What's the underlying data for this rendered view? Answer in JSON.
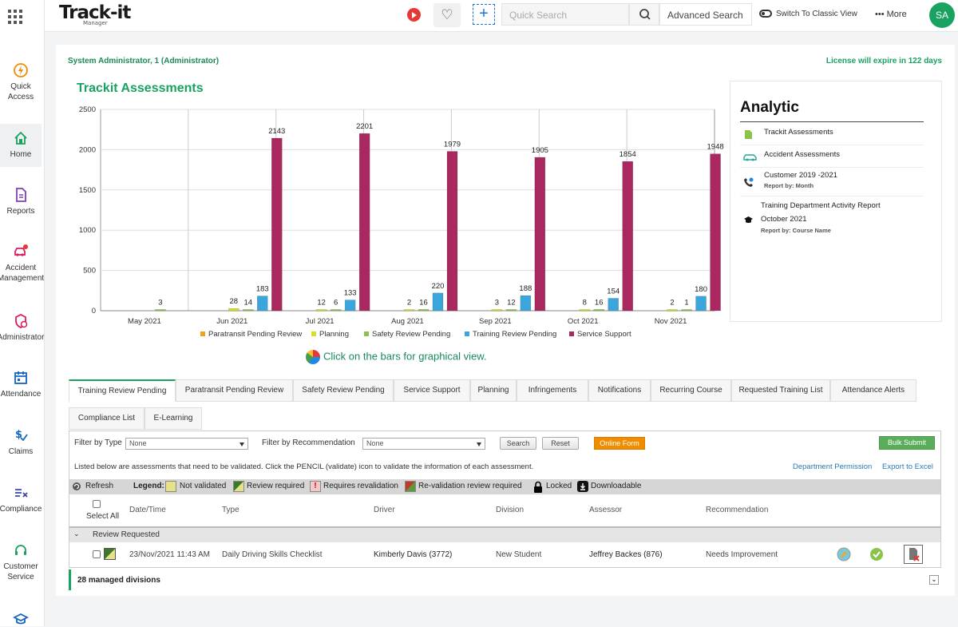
{
  "sidebar": {
    "items": [
      {
        "label": "Quick Access",
        "icon": "bolt-icon"
      },
      {
        "label": "Home",
        "icon": "home-icon"
      },
      {
        "label": "Reports",
        "icon": "document-icon"
      },
      {
        "label": "Accident Management",
        "icon": "car-crash-icon"
      },
      {
        "label": "Administrator",
        "icon": "admin-shield-icon"
      },
      {
        "label": "Attendance",
        "icon": "calendar-icon"
      },
      {
        "label": "Claims",
        "icon": "dollar-check-icon"
      },
      {
        "label": "Compliance",
        "icon": "compliance-icon"
      },
      {
        "label": "Customer Service",
        "icon": "headset-icon"
      }
    ]
  },
  "topbar": {
    "logo": "Track-it",
    "logo_sub": "Manager",
    "search_placeholder": "Quick Search",
    "advanced_search": "Advanced Search",
    "switch_classic": "Switch To Classic View",
    "more": "More",
    "avatar": "SA"
  },
  "header": {
    "user": "System Administrator, 1 (Administrator)",
    "license": "License will expire in 122 days"
  },
  "chart_title": "Trackit Assessments",
  "chart_hint": "Click on the bars for graphical view.",
  "chart_data": {
    "type": "bar",
    "categories": [
      "May 2021",
      "Jun 2021",
      "Jul 2021",
      "Aug 2021",
      "Sep 2021",
      "Oct 2021",
      "Nov 2021"
    ],
    "ylim": [
      0,
      2500
    ],
    "yticks": [
      0,
      500,
      1000,
      1500,
      2000,
      2500
    ],
    "series": [
      {
        "name": "Paratransit Pending Review",
        "color": "#f4a21d",
        "values": [
          0,
          0,
          0,
          0,
          0,
          0,
          0
        ],
        "labels": [
          "",
          "",
          "",
          "",
          "",
          "",
          ""
        ]
      },
      {
        "name": "Planning",
        "color": "#d4e021",
        "values": [
          0,
          28,
          12,
          2,
          3,
          8,
          2
        ],
        "labels": [
          "",
          "28",
          "12",
          "2",
          "3",
          "8",
          "2"
        ]
      },
      {
        "name": "Safety Review Pending",
        "color": "#8bc34a",
        "values": [
          3,
          14,
          6,
          16,
          12,
          16,
          1
        ],
        "labels": [
          "3",
          "14",
          "6",
          "16",
          "12",
          "16",
          "1"
        ]
      },
      {
        "name": "Training Review Pending",
        "color": "#3aa6dc",
        "values": [
          0,
          183,
          133,
          220,
          188,
          154,
          180
        ],
        "labels": [
          "",
          "183",
          "133",
          "220",
          "188",
          "154",
          "180"
        ]
      },
      {
        "name": "Service Support",
        "color": "#a8285f",
        "values": [
          0,
          2143,
          2201,
          1979,
          1905,
          1854,
          1948
        ],
        "labels": [
          "",
          "2143",
          "2201",
          "1979",
          "1905",
          "1854",
          "1948"
        ]
      }
    ],
    "grid": true,
    "legend": "bottom"
  },
  "analytic": {
    "title": "Analytic",
    "items": [
      {
        "title": "Trackit Assessments",
        "sub": "",
        "icon": "document-green-icon"
      },
      {
        "title": "Accident Assessments",
        "sub": "",
        "icon": "car-icon"
      },
      {
        "title": "Customer 2019 -2021",
        "sub": "Report by: Month",
        "icon": "phone-icon"
      },
      {
        "title": "Training Department Activity Report",
        "title2": "October 2021",
        "sub": "Report by: Course Name",
        "icon": "graduation-cap-icon"
      }
    ]
  },
  "tabs": [
    "Training Review Pending",
    "Paratransit Pending Review",
    "Safety Review Pending",
    "Service Support",
    "Planning",
    "Infringements",
    "Notifications",
    "Recurring Course",
    "Requested Training List",
    "Attendance Alerts"
  ],
  "tabs2": [
    "Compliance List",
    "E-Learning"
  ],
  "filters": {
    "type_label": "Filter by Type",
    "type_value": "None",
    "rec_label": "Filter by Recommendation",
    "rec_value": "None",
    "search": "Search",
    "reset": "Reset",
    "online_form": "Online Form",
    "bulk_submit": "Bulk Submit"
  },
  "info_text": "Listed below are assessments that need to be validated. Click the PENCIL (validate) icon to validate the information of each assessment.",
  "links": {
    "dept": "Department Permission",
    "export": "Export to Excel"
  },
  "legend": {
    "refresh": "Refresh",
    "label": "Legend:",
    "not_validated": "Not validated",
    "review_required": "Review required",
    "requires_revalidation": "Requires revalidation",
    "revalidation_review": "Re-validation review required",
    "locked": "Locked",
    "downloadable": "Downloadable"
  },
  "table": {
    "select_all": "Select All",
    "columns": [
      "Date/Time",
      "Type",
      "Driver",
      "Division",
      "Assessor",
      "Recommendation"
    ],
    "group": "Review Requested",
    "rows": [
      [
        "23/Nov/2021 11:43 AM",
        "Daily Driving Skills Checklist",
        "Kimberly Davis (3772)",
        "New Student",
        "Jeffrey Backes (876)",
        "Needs Improvement"
      ]
    ]
  },
  "managed_divisions": "28 managed divisions"
}
